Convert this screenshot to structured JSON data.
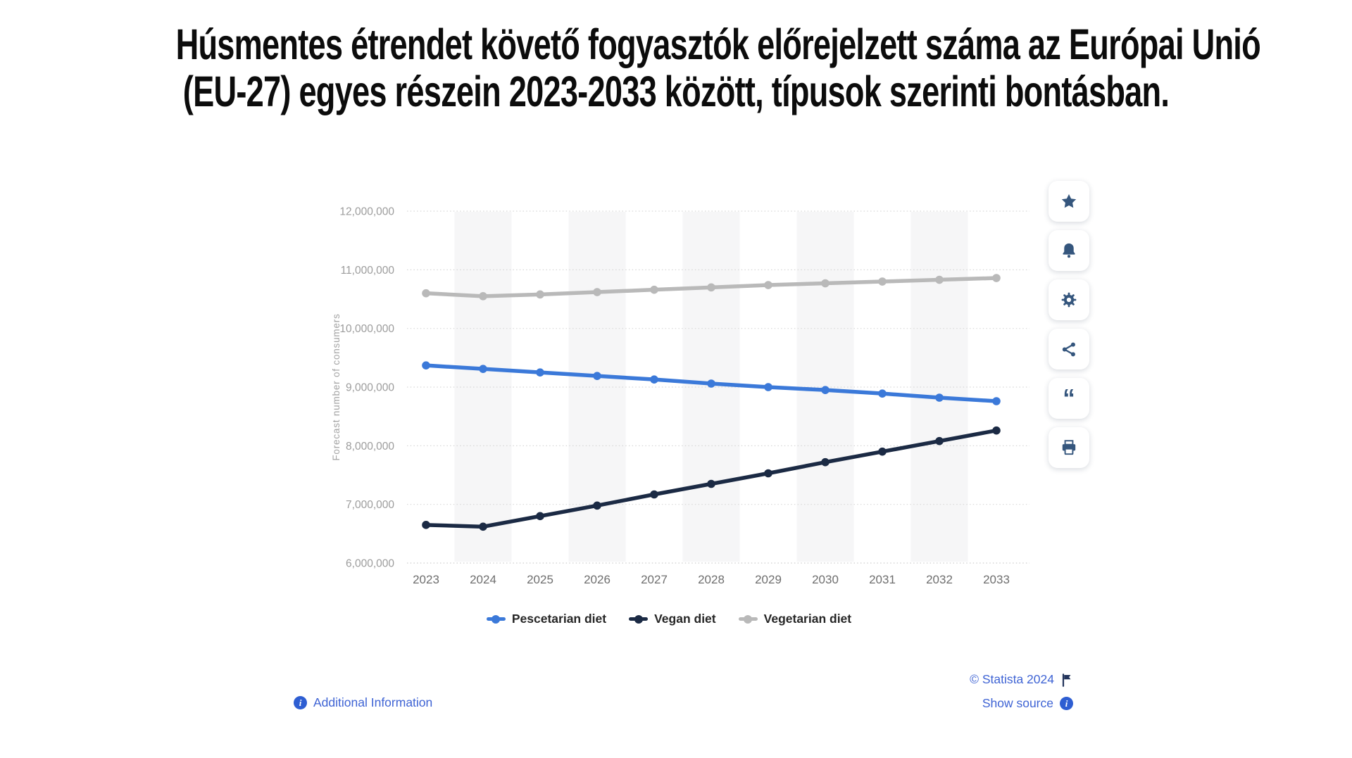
{
  "page": {
    "title_line1": "Húsmentes étrendet követő fogyasztók előrejelzett száma az Európai Unió",
    "title_line2": "(EU-27) egyes részein 2023-2033 között, típusok szerinti bontásban."
  },
  "chart_data": {
    "type": "line",
    "title": "",
    "xlabel": "",
    "ylabel": "Forecast number of consumers",
    "categories": [
      "2023",
      "2024",
      "2025",
      "2026",
      "2027",
      "2028",
      "2029",
      "2030",
      "2031",
      "2032",
      "2033"
    ],
    "series": [
      {
        "name": "Pescetarian diet",
        "color": "#3b79d9",
        "values": [
          9370000,
          9310000,
          9250000,
          9190000,
          9130000,
          9060000,
          9000000,
          8950000,
          8890000,
          8820000,
          8760000
        ]
      },
      {
        "name": "Vegan diet",
        "color": "#1b2a44",
        "values": [
          6650000,
          6620000,
          6800000,
          6980000,
          7170000,
          7350000,
          7530000,
          7720000,
          7900000,
          8080000,
          8260000
        ]
      },
      {
        "name": "Vegetarian diet",
        "color": "#b9b9b9",
        "values": [
          10600000,
          10550000,
          10580000,
          10620000,
          10660000,
          10700000,
          10740000,
          10770000,
          10800000,
          10830000,
          10860000
        ]
      }
    ],
    "ylim": [
      6000000,
      12250000
    ],
    "ytick_values": [
      6000000,
      7000000,
      8000000,
      9000000,
      10000000,
      11000000,
      12000000
    ],
    "ytick_labels": [
      "6,000,000",
      "7,000,000",
      "8,000,000",
      "9,000,000",
      "10,000,000",
      "11,000,000",
      "12,000,000"
    ],
    "grid": "horizontal dotted gridlines",
    "plot_bands": "light gray vertical bands on 2024, 2026, 2028, 2030, 2032",
    "legend_position": "bottom",
    "colors": {
      "band": "#f6f6f7",
      "gridline": "#d7d7d7",
      "axis_line": "#cccccc",
      "ytick_text": "#9c9c9c",
      "xtick_text": "#6e6e6e",
      "ylabel_text": "#a3a3a3"
    }
  },
  "toolbar": {
    "icon_color": "#35567d",
    "buttons": [
      {
        "name": "favorite",
        "icon": "star"
      },
      {
        "name": "notifications",
        "icon": "bell"
      },
      {
        "name": "settings",
        "icon": "gear"
      },
      {
        "name": "share",
        "icon": "share"
      },
      {
        "name": "cite",
        "icon": "quote"
      },
      {
        "name": "print",
        "icon": "printer"
      }
    ]
  },
  "footer": {
    "additional_info_label": "Additional Information",
    "copyright_label": "© Statista 2024",
    "show_source_label": "Show source",
    "link_color": "#3e63d4"
  }
}
